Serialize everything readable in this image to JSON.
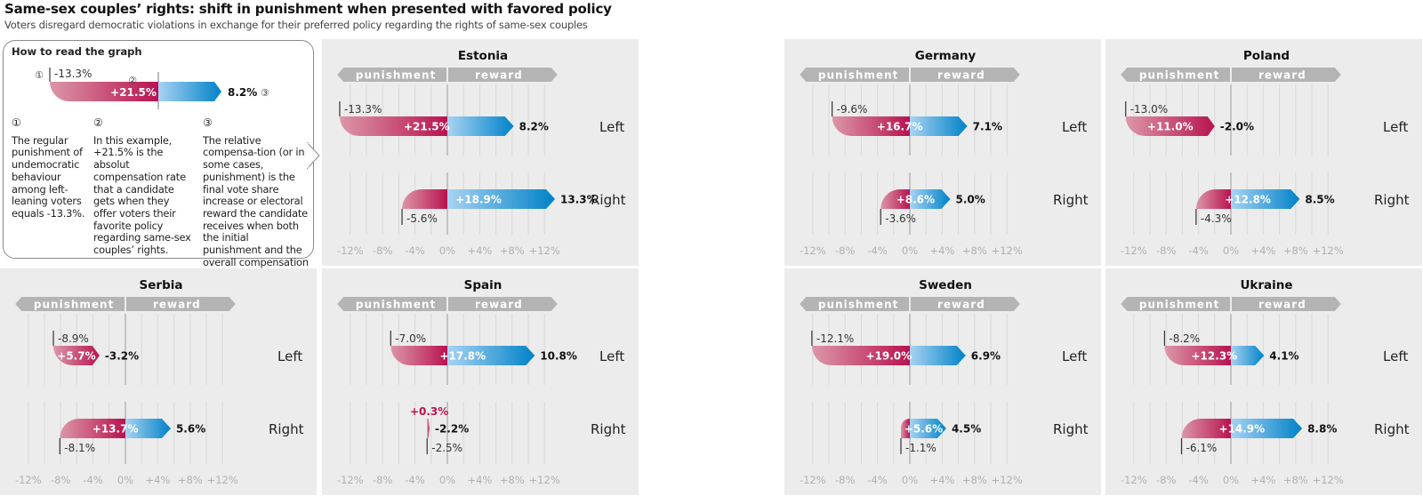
{
  "title": "Same-sex couples’ rights: shift in punishment when presented with favored policy",
  "subtitle": "Voters disregard democratic violations in exchange for their preferred policy regarding the rights of same-sex couples",
  "how_to_read": {
    "heading": "How to read the graph",
    "example": {
      "punishment": "-13.3%",
      "compensation": "+21.5%",
      "final": "8.2%"
    },
    "markers": [
      "①",
      "②",
      "③"
    ],
    "notes": [
      "The regular punishment of undemocratic behaviour among left-leaning voters equals -13.3%.",
      "In this example, +21.5% is the absolut compensation rate that a candidate gets when they offer voters their favorite policy regarding same-sex couples’ rights.",
      "The relative compensa-tion (or in some cases, punishment) is the final vote share increase or electoral reward the candidate receives when both the initial punishment and the overall compensation are taken into account."
    ]
  },
  "chart_data": {
    "type": "bar",
    "subtype": "diverging waterfall (punishment → compensation → final)",
    "banner": {
      "negative": "punishment",
      "positive": "reward"
    },
    "x_ticks": [
      "-12%",
      "-8%",
      "-4%",
      "0%",
      "+4%",
      "+8%",
      "+12%"
    ],
    "xlim": [
      -12,
      12
    ],
    "unit": "%",
    "row_labels": {
      "left": "Left",
      "right": "Right"
    },
    "colors": {
      "punishment_light": "#dc97a8",
      "punishment_dark": "#b8134f",
      "reward_light": "#a8d3f2",
      "reward_dark": "#0082c8",
      "panel_bg": "#ececec",
      "banner": "#b4b4b4"
    },
    "panels": [
      {
        "country": "Estonia",
        "left": {
          "punishment": -13.3,
          "compensation": 21.5,
          "final": 8.2
        },
        "right": {
          "punishment": -5.6,
          "compensation": 18.9,
          "final": 13.3
        }
      },
      {
        "country": "Germany",
        "left": {
          "punishment": -9.6,
          "compensation": 16.7,
          "final": 7.1
        },
        "right": {
          "punishment": -3.6,
          "compensation": 8.6,
          "final": 5.0
        }
      },
      {
        "country": "Poland",
        "left": {
          "punishment": -13.0,
          "compensation": 11.0,
          "final": -2.0
        },
        "right": {
          "punishment": -4.3,
          "compensation": 12.8,
          "final": 8.5
        }
      },
      {
        "country": "Serbia",
        "left": {
          "punishment": -8.9,
          "compensation": 5.7,
          "final": -3.2
        },
        "right": {
          "punishment": -8.1,
          "compensation": 13.7,
          "final": 5.6
        }
      },
      {
        "country": "Spain",
        "left": {
          "punishment": -7.0,
          "compensation": 17.8,
          "final": 10.8
        },
        "right": {
          "punishment": -2.5,
          "compensation": 0.3,
          "final": -2.2
        }
      },
      {
        "country": "Sweden",
        "left": {
          "punishment": -12.1,
          "compensation": 19.0,
          "final": 6.9
        },
        "right": {
          "punishment": -1.1,
          "compensation": 5.6,
          "final": 4.5
        }
      },
      {
        "country": "Ukraine",
        "left": {
          "punishment": -8.2,
          "compensation": 12.3,
          "final": 4.1
        },
        "right": {
          "punishment": -6.1,
          "compensation": 14.9,
          "final": 8.8
        }
      }
    ]
  }
}
